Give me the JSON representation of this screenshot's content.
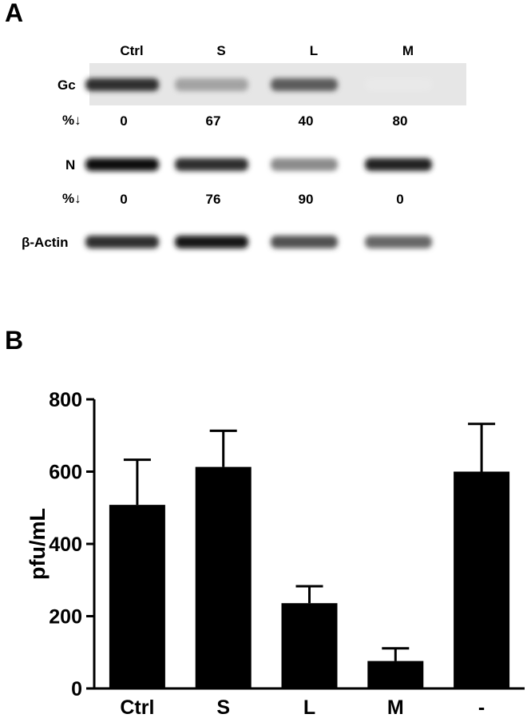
{
  "panel_a": {
    "letter": "A",
    "lanes": [
      "Ctrl",
      "S",
      "L",
      "M"
    ],
    "rows": [
      {
        "label": "Gc",
        "band_intensity": [
          0.85,
          0.35,
          0.65,
          0.05
        ],
        "light_box": true
      },
      {
        "label": "%↓",
        "values": [
          "0",
          "67",
          "40",
          "80"
        ]
      },
      {
        "label": "N",
        "band_intensity": [
          1.0,
          0.85,
          0.45,
          0.9
        ],
        "light_box": false
      },
      {
        "label": "%↓",
        "values": [
          "0",
          "76",
          "90",
          "0"
        ]
      },
      {
        "label": "β-Actin",
        "band_intensity": [
          0.85,
          0.95,
          0.7,
          0.6
        ],
        "light_box": false
      }
    ]
  },
  "panel_b": {
    "letter": "B",
    "chart_data": {
      "type": "bar",
      "categories": [
        "Ctrl",
        "S",
        "L",
        "M",
        "-"
      ],
      "values": [
        508,
        613,
        236,
        76,
        600
      ],
      "errors": [
        125,
        100,
        47,
        35,
        132
      ],
      "title": "",
      "xlabel": "",
      "ylabel": "pfu/mL",
      "ylim": [
        0,
        800
      ],
      "yticks": [
        "0",
        "200",
        "400",
        "600",
        "800"
      ],
      "grid": false,
      "bar_color": "#000000"
    }
  }
}
